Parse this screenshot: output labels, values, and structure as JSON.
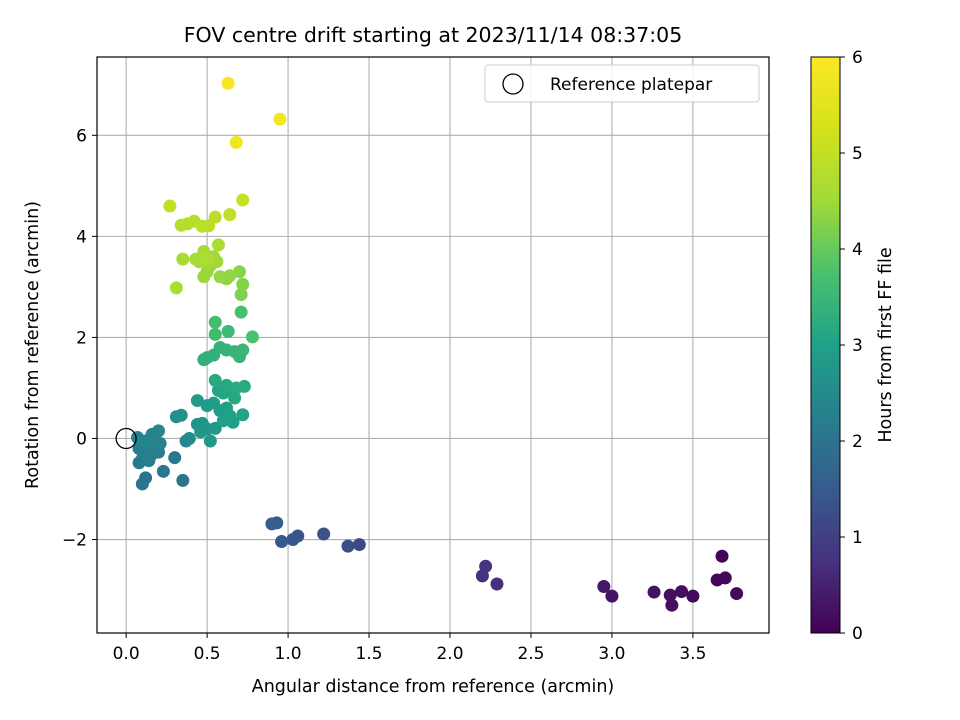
{
  "chart_data": {
    "type": "scatter",
    "title": "FOV centre drift starting at 2023/11/14 08:37:05",
    "xlabel": "Angular distance from reference (arcmin)",
    "ylabel": "Rotation from reference (arcmin)",
    "xlim": [
      -0.18,
      3.97
    ],
    "ylim": [
      -3.85,
      7.55
    ],
    "xticks": [
      0.0,
      0.5,
      1.0,
      1.5,
      2.0,
      2.5,
      3.0,
      3.5
    ],
    "xtick_labels": [
      "0.0",
      "0.5",
      "1.0",
      "1.5",
      "2.0",
      "2.5",
      "3.0",
      "3.5"
    ],
    "yticks": [
      -2,
      0,
      2,
      4,
      6
    ],
    "ytick_labels": [
      "−2",
      "0",
      "2",
      "4",
      "6"
    ],
    "grid": true,
    "colormap": "viridis",
    "colorbar": {
      "label": "Hours from first FF file",
      "range": [
        0,
        6
      ],
      "ticks": [
        0,
        1,
        2,
        3,
        4,
        5,
        6
      ],
      "tick_labels": [
        "0",
        "1",
        "2",
        "3",
        "4",
        "5",
        "6"
      ]
    },
    "legend": {
      "position": "top-right",
      "entries": [
        "Reference platepar"
      ]
    },
    "reference_point": {
      "x": 0.0,
      "y": 0.0
    },
    "points": [
      [
        3.68,
        -2.33,
        0.05
      ],
      [
        3.65,
        -2.8,
        0.08
      ],
      [
        3.7,
        -2.76,
        0.1
      ],
      [
        3.77,
        -3.07,
        0.12
      ],
      [
        3.5,
        -3.12,
        0.15
      ],
      [
        3.43,
        -3.03,
        0.18
      ],
      [
        3.36,
        -3.1,
        0.2
      ],
      [
        3.37,
        -3.3,
        0.22
      ],
      [
        3.26,
        -3.04,
        0.25
      ],
      [
        3.0,
        -3.12,
        0.3
      ],
      [
        2.95,
        -2.93,
        0.35
      ],
      [
        2.29,
        -2.88,
        0.7
      ],
      [
        2.2,
        -2.72,
        0.75
      ],
      [
        2.22,
        -2.53,
        0.8
      ],
      [
        1.44,
        -2.1,
        1.2
      ],
      [
        1.37,
        -2.13,
        1.25
      ],
      [
        1.22,
        -1.89,
        1.3
      ],
      [
        1.06,
        -1.93,
        1.35
      ],
      [
        1.03,
        -2.0,
        1.4
      ],
      [
        0.96,
        -2.04,
        1.45
      ],
      [
        0.93,
        -1.67,
        1.5
      ],
      [
        0.9,
        -1.69,
        1.55
      ],
      [
        0.1,
        -0.9,
        2.0
      ],
      [
        0.12,
        -0.78,
        2.02
      ],
      [
        0.35,
        -0.83,
        2.05
      ],
      [
        0.23,
        -0.65,
        2.08
      ],
      [
        0.3,
        -0.38,
        2.1
      ],
      [
        0.08,
        -0.48,
        2.12
      ],
      [
        0.1,
        -0.4,
        2.14
      ],
      [
        0.14,
        -0.44,
        2.16
      ],
      [
        0.17,
        -0.25,
        2.18
      ],
      [
        0.2,
        -0.27,
        2.2
      ],
      [
        0.11,
        -0.3,
        2.22
      ],
      [
        0.15,
        -0.35,
        2.24
      ],
      [
        0.08,
        -0.2,
        2.26
      ],
      [
        0.13,
        -0.15,
        2.28
      ],
      [
        0.18,
        -0.05,
        2.3
      ],
      [
        0.21,
        -0.1,
        2.32
      ],
      [
        0.07,
        0.02,
        2.34
      ],
      [
        0.16,
        0.08,
        2.36
      ],
      [
        0.2,
        0.15,
        2.38
      ],
      [
        0.12,
        -0.05,
        2.4
      ],
      [
        0.37,
        -0.05,
        2.45
      ],
      [
        0.39,
        0.0,
        2.5
      ],
      [
        0.31,
        0.43,
        2.6
      ],
      [
        0.34,
        0.46,
        2.65
      ],
      [
        0.44,
        0.28,
        2.7
      ],
      [
        0.47,
        0.3,
        2.72
      ],
      [
        0.46,
        0.13,
        2.75
      ],
      [
        0.5,
        0.19,
        2.78
      ],
      [
        0.55,
        0.2,
        2.8
      ],
      [
        0.52,
        -0.05,
        2.82
      ],
      [
        0.44,
        0.75,
        2.85
      ],
      [
        0.5,
        0.65,
        2.88
      ],
      [
        0.54,
        0.7,
        2.9
      ],
      [
        0.58,
        0.55,
        2.92
      ],
      [
        0.62,
        0.6,
        2.95
      ],
      [
        0.66,
        0.32,
        2.98
      ],
      [
        0.6,
        0.35,
        3.0
      ],
      [
        0.64,
        0.45,
        3.02
      ],
      [
        0.72,
        0.47,
        3.05
      ],
      [
        0.57,
        0.95,
        3.08
      ],
      [
        0.6,
        0.9,
        3.1
      ],
      [
        0.63,
        1.0,
        3.12
      ],
      [
        0.67,
        0.8,
        3.14
      ],
      [
        0.62,
        1.05,
        3.16
      ],
      [
        0.55,
        1.15,
        3.18
      ],
      [
        0.68,
        1.0,
        3.2
      ],
      [
        0.73,
        1.03,
        3.22
      ],
      [
        0.48,
        1.56,
        3.3
      ],
      [
        0.5,
        1.6,
        3.32
      ],
      [
        0.54,
        1.65,
        3.35
      ],
      [
        0.58,
        1.8,
        3.38
      ],
      [
        0.62,
        1.75,
        3.4
      ],
      [
        0.67,
        1.72,
        3.42
      ],
      [
        0.7,
        1.62,
        3.45
      ],
      [
        0.72,
        1.75,
        3.48
      ],
      [
        0.63,
        2.12,
        3.55
      ],
      [
        0.55,
        2.06,
        3.6
      ],
      [
        0.55,
        2.3,
        3.65
      ],
      [
        0.71,
        2.5,
        3.7
      ],
      [
        0.78,
        2.01,
        3.75
      ],
      [
        0.71,
        2.85,
        4.2
      ],
      [
        0.72,
        3.05,
        4.25
      ],
      [
        0.7,
        3.3,
        4.3
      ],
      [
        0.62,
        3.16,
        4.35
      ],
      [
        0.64,
        3.22,
        4.38
      ],
      [
        0.58,
        3.2,
        4.4
      ],
      [
        0.5,
        3.3,
        4.42
      ],
      [
        0.48,
        3.2,
        4.45
      ],
      [
        0.52,
        3.42,
        4.48
      ],
      [
        0.56,
        3.5,
        4.5
      ],
      [
        0.54,
        3.6,
        4.52
      ],
      [
        0.45,
        3.5,
        4.55
      ],
      [
        0.48,
        3.7,
        4.58
      ],
      [
        0.43,
        3.55,
        4.6
      ],
      [
        0.35,
        3.55,
        4.62
      ],
      [
        0.57,
        3.83,
        4.65
      ],
      [
        0.31,
        2.98,
        4.68
      ],
      [
        0.5,
        3.55,
        4.7
      ],
      [
        0.34,
        4.22,
        4.8
      ],
      [
        0.38,
        4.25,
        4.82
      ],
      [
        0.42,
        4.3,
        4.85
      ],
      [
        0.47,
        4.2,
        4.88
      ],
      [
        0.51,
        4.21,
        4.9
      ],
      [
        0.55,
        4.38,
        4.92
      ],
      [
        0.64,
        4.43,
        4.95
      ],
      [
        0.27,
        4.6,
        4.98
      ],
      [
        0.72,
        4.72,
        5.05
      ],
      [
        0.68,
        5.86,
        5.75
      ],
      [
        0.95,
        6.32,
        5.85
      ],
      [
        0.63,
        7.03,
        5.95
      ]
    ]
  }
}
